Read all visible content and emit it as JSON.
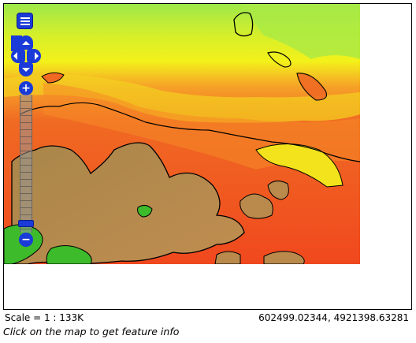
{
  "map": {
    "status": {
      "scale_label": "Scale = 1 : 133K",
      "coordinates": "602499.02344, 4921398.63281",
      "hint": "Click on the map to get feature info"
    },
    "controls": {
      "layer_switcher_icon": "layer-list-icon",
      "zoom_in_symbol": "+",
      "zoom_out_symbol": "−",
      "zoom_level_fraction": 0.92
    },
    "colors": {
      "high_elev": "#9de84a",
      "mid_high": "#f3f11a",
      "mid": "#f08a25",
      "low": "#f0481e",
      "terrain_brown": "#b98a4c",
      "water_green": "#3dbb2b",
      "controls": "#1a3bd8"
    }
  }
}
